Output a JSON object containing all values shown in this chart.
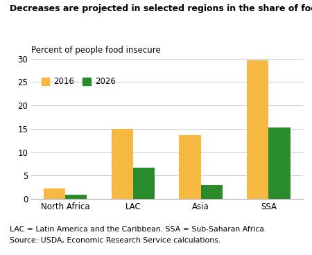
{
  "title": "Decreases are projected in selected regions in the share of food-insecure people...",
  "ylabel": "Percent of people food insecure",
  "categories": [
    "North Africa",
    "LAC",
    "Asia",
    "SSA"
  ],
  "values_2016": [
    2.3,
    15.0,
    13.6,
    29.6
  ],
  "values_2026": [
    0.9,
    6.7,
    2.9,
    15.2
  ],
  "color_2016": "#F5B942",
  "color_2026": "#2A8B2A",
  "ylim": [
    0,
    30
  ],
  "yticks": [
    0,
    5,
    10,
    15,
    20,
    25,
    30
  ],
  "legend_labels": [
    "2016",
    "2026"
  ],
  "footnote_line1": "LAC = Latin America and the Caribbean. SSA = Sub-Saharan Africa.",
  "footnote_line2": "Source: USDA, Economic Research Service calculations.",
  "bar_width": 0.32,
  "title_fontsize": 9.0,
  "axis_label_fontsize": 8.5,
  "tick_fontsize": 8.5,
  "legend_fontsize": 8.5,
  "footnote_fontsize": 7.8,
  "background_color": "#FFFFFF"
}
